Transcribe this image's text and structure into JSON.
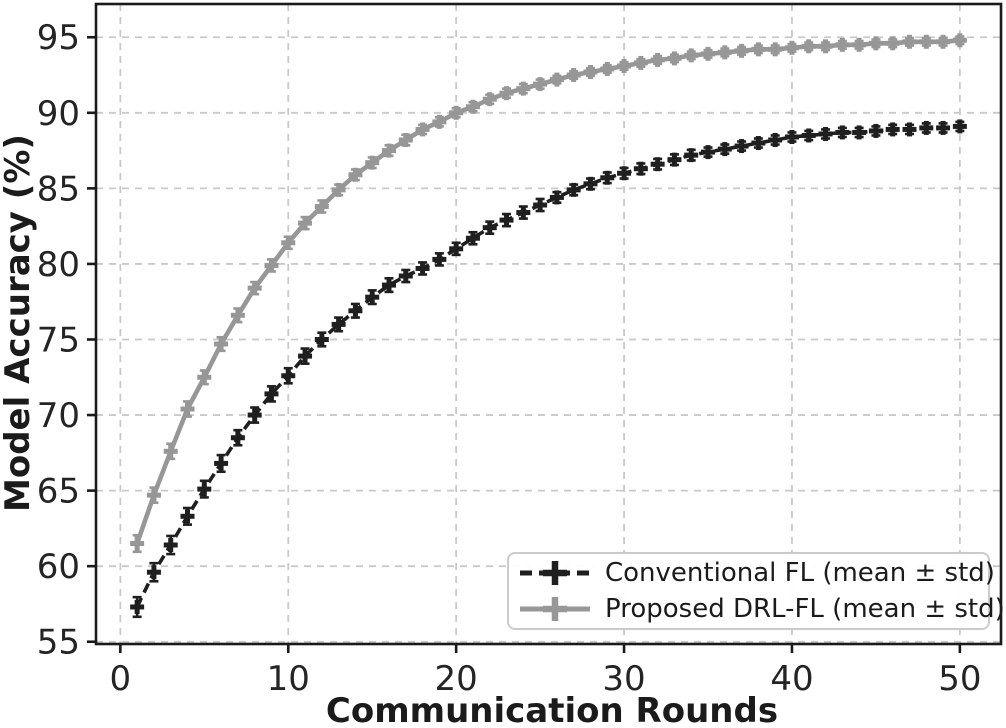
{
  "chart_data": {
    "type": "line",
    "title": "",
    "xlabel": "Communication Rounds",
    "ylabel": "Model Accuracy (%)",
    "xlim": [
      -1.45,
      52.45
    ],
    "ylim": [
      54.85,
      97.2
    ],
    "xticks": [
      0,
      10,
      20,
      30,
      40,
      50
    ],
    "yticks": [
      55,
      60,
      65,
      70,
      75,
      80,
      85,
      90,
      95
    ],
    "grid": true,
    "grid_style": "dashed",
    "legend_position": "lower right",
    "colors": {
      "grid": "#c9c9c9",
      "axis": "#1a1a1a",
      "text": "#242424",
      "background": "#ffffff"
    },
    "x": [
      1,
      2,
      3,
      4,
      5,
      6,
      7,
      8,
      9,
      10,
      11,
      12,
      13,
      14,
      15,
      16,
      17,
      18,
      19,
      20,
      21,
      22,
      23,
      24,
      25,
      26,
      27,
      28,
      29,
      30,
      31,
      32,
      33,
      34,
      35,
      36,
      37,
      38,
      39,
      40,
      41,
      42,
      43,
      44,
      45,
      46,
      47,
      48,
      49,
      50
    ],
    "series": [
      {
        "name": "Conventional FL (mean ± std)",
        "color": "#1f1f1f",
        "linestyle": "dashed",
        "marker": "plus",
        "values": [
          57.3,
          59.6,
          61.4,
          63.3,
          65.1,
          66.8,
          68.5,
          70.0,
          71.4,
          72.6,
          73.9,
          75.0,
          76.0,
          76.9,
          77.8,
          78.6,
          79.2,
          79.7,
          80.3,
          81.0,
          81.7,
          82.4,
          82.9,
          83.4,
          83.9,
          84.4,
          84.9,
          85.3,
          85.7,
          86.0,
          86.3,
          86.6,
          86.9,
          87.2,
          87.4,
          87.6,
          87.8,
          88.0,
          88.2,
          88.4,
          88.5,
          88.6,
          88.7,
          88.7,
          88.8,
          88.9,
          88.9,
          89.0,
          89.0,
          89.1
        ],
        "std": [
          0.65,
          0.6,
          0.6,
          0.55,
          0.55,
          0.55,
          0.5,
          0.5,
          0.5,
          0.5,
          0.5,
          0.45,
          0.45,
          0.45,
          0.45,
          0.45,
          0.4,
          0.4,
          0.4,
          0.4,
          0.4,
          0.4,
          0.4,
          0.4,
          0.4,
          0.35,
          0.35,
          0.35,
          0.35,
          0.35,
          0.35,
          0.35,
          0.35,
          0.35,
          0.3,
          0.3,
          0.3,
          0.3,
          0.3,
          0.3,
          0.3,
          0.3,
          0.3,
          0.3,
          0.3,
          0.3,
          0.3,
          0.3,
          0.3,
          0.3
        ]
      },
      {
        "name": "Proposed DRL-FL (mean ± std)",
        "color": "#979797",
        "linestyle": "solid",
        "marker": "plus",
        "values": [
          61.5,
          64.7,
          67.6,
          70.4,
          72.5,
          74.7,
          76.6,
          78.4,
          79.9,
          81.4,
          82.7,
          83.8,
          84.9,
          85.9,
          86.7,
          87.5,
          88.2,
          88.9,
          89.4,
          90.0,
          90.4,
          90.9,
          91.3,
          91.6,
          91.9,
          92.2,
          92.5,
          92.7,
          92.9,
          93.1,
          93.3,
          93.5,
          93.6,
          93.8,
          93.9,
          94.0,
          94.1,
          94.2,
          94.2,
          94.3,
          94.4,
          94.4,
          94.5,
          94.5,
          94.6,
          94.6,
          94.7,
          94.7,
          94.7,
          94.8
        ],
        "std": [
          0.55,
          0.5,
          0.5,
          0.5,
          0.45,
          0.45,
          0.45,
          0.4,
          0.4,
          0.4,
          0.4,
          0.4,
          0.35,
          0.35,
          0.35,
          0.35,
          0.35,
          0.3,
          0.3,
          0.3,
          0.3,
          0.3,
          0.3,
          0.3,
          0.3,
          0.25,
          0.25,
          0.25,
          0.25,
          0.25,
          0.25,
          0.25,
          0.25,
          0.25,
          0.25,
          0.25,
          0.25,
          0.25,
          0.25,
          0.25,
          0.25,
          0.25,
          0.25,
          0.25,
          0.25,
          0.25,
          0.25,
          0.25,
          0.25,
          0.25
        ]
      }
    ]
  }
}
